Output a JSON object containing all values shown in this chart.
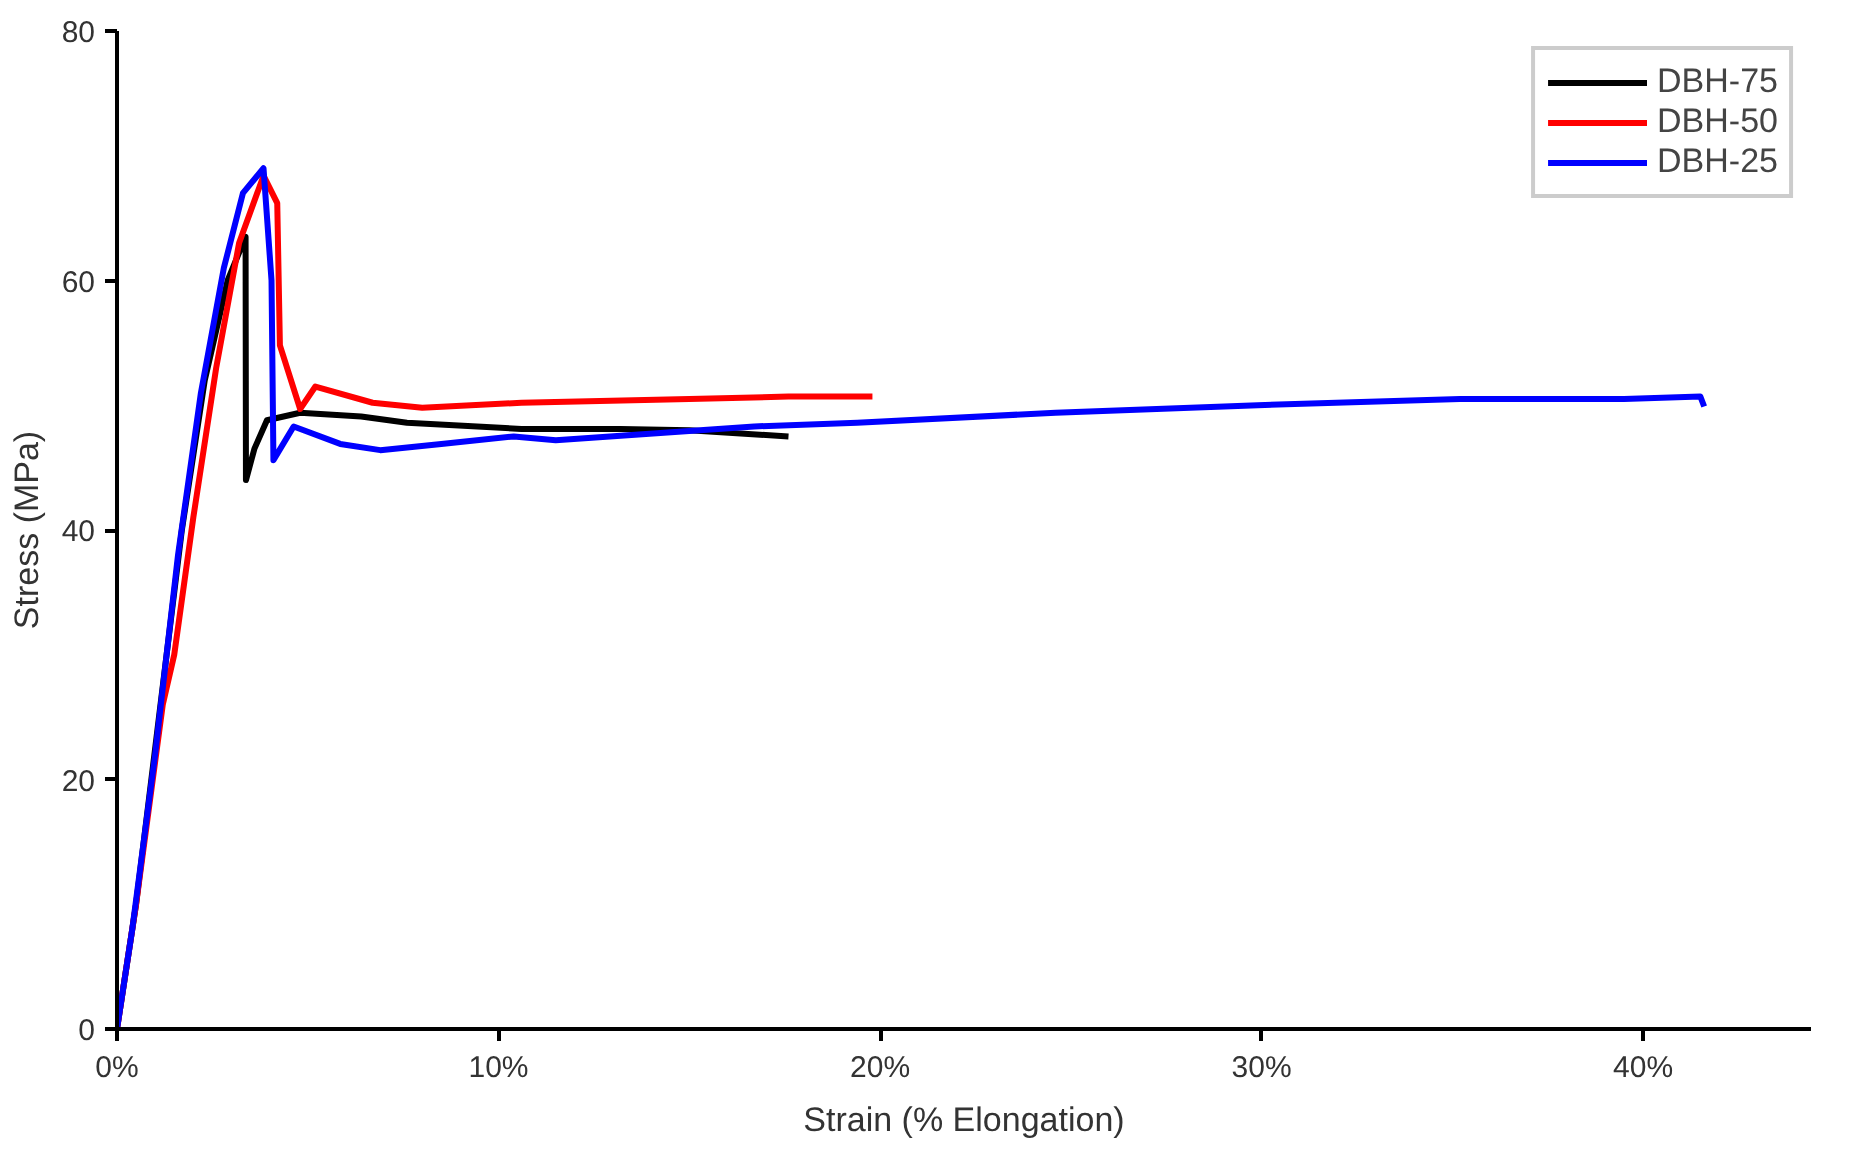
{
  "chart_data": {
    "type": "line",
    "xlabel": "Strain (% Elongation)",
    "ylabel": "Stress (MPa)",
    "xlim": [
      0,
      44.4
    ],
    "ylim": [
      0,
      80
    ],
    "xticks": [
      {
        "value": 0,
        "label": "0%"
      },
      {
        "value": 10,
        "label": "10%"
      },
      {
        "value": 20,
        "label": "20%"
      },
      {
        "value": 30,
        "label": "30%"
      },
      {
        "value": 40,
        "label": "40%"
      }
    ],
    "yticks": [
      0,
      20,
      40,
      60,
      80
    ],
    "grid": false,
    "legend": "top right",
    "series": [
      {
        "name": "DBH-75",
        "color": "#000000",
        "x": [
          0,
          0.5,
          1.1,
          1.7,
          2.3,
          2.9,
          3.37,
          3.38,
          3.6,
          3.93,
          4.8,
          6.4,
          7.6,
          10.6,
          13.2,
          15,
          17.6
        ],
        "values": [
          0,
          10,
          25,
          40,
          52,
          60,
          63.5,
          44,
          46.5,
          48.8,
          49.4,
          49.1,
          48.6,
          48.1,
          48.1,
          48,
          47.5
        ]
      },
      {
        "name": "DBH-50",
        "color": "#ff0000",
        "x": [
          0,
          0.5,
          1.2,
          1.5,
          2,
          2.6,
          3.2,
          3.84,
          4.2,
          4.27,
          4.8,
          5.2,
          6.7,
          8,
          10.6,
          15,
          17.6,
          19.8
        ],
        "values": [
          0,
          10,
          26,
          30,
          41,
          53,
          63,
          68.4,
          66.2,
          54.8,
          49.7,
          51.5,
          50.2,
          49.8,
          50.2,
          50.5,
          50.7,
          50.7
        ]
      },
      {
        "name": "DBH-25",
        "color": "#0000ff",
        "x": [
          0,
          0.4,
          1,
          1.6,
          2.2,
          2.8,
          3.3,
          3.84,
          4.05,
          4.1,
          4.63,
          5.85,
          6.9,
          8.5,
          10.4,
          11.5,
          16.7,
          19.4,
          24.6,
          29.9,
          35.2,
          39.5,
          41.5,
          41.6
        ],
        "values": [
          0,
          8,
          22,
          38,
          51,
          61,
          67,
          69,
          60,
          45.6,
          48.3,
          46.9,
          46.4,
          46.9,
          47.5,
          47.2,
          48.3,
          48.6,
          49.4,
          50,
          50.5,
          50.5,
          50.7,
          49.9
        ]
      }
    ]
  }
}
